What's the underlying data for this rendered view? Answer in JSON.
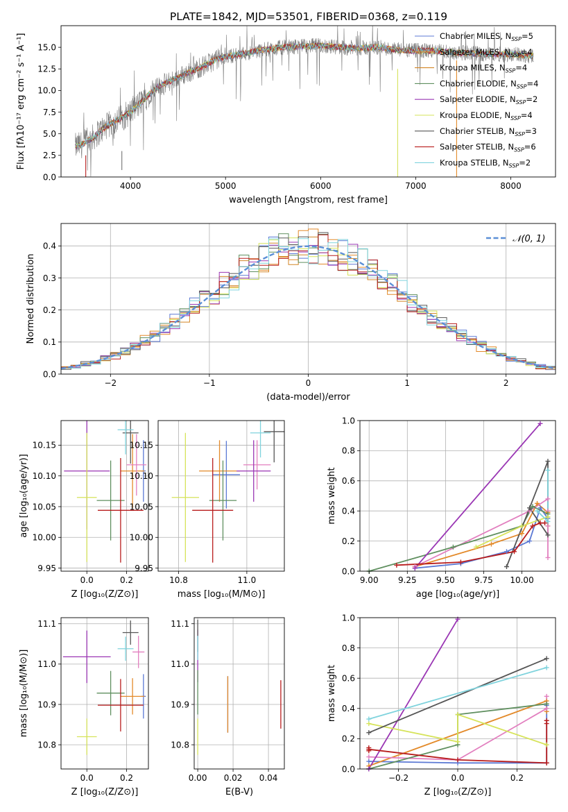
{
  "figure": {
    "title": "PLATE=1842, MJD=53501, FIBERID=0368, z=0.119"
  },
  "chart_data": [
    {
      "id": "spectrum",
      "type": "line",
      "xlabel": "wavelength [Angstrom, rest frame]",
      "ylabel": "Flux [fλ10⁻¹⁷ erg cm⁻² s⁻¹ A⁻¹]",
      "xlim": [
        3270,
        8470
      ],
      "ylim": [
        0,
        17.5
      ],
      "xticks": [
        4000,
        5000,
        6000,
        7000,
        8000
      ],
      "yticks": [
        0.0,
        2.5,
        5.0,
        7.5,
        10.0,
        12.5,
        15.0
      ],
      "ytick_labels": [
        "0.0",
        "2.5",
        "5.0",
        "7.5",
        "10.0",
        "12.5",
        "15.0"
      ],
      "grid": false,
      "legend_position": "top-right",
      "data_envelope": {
        "x": [
          3420,
          3500,
          3600,
          3700,
          3800,
          3900,
          4000,
          4100,
          4200,
          4300,
          4400,
          4500,
          4600,
          4700,
          4800,
          4900,
          5000,
          5200,
          5400,
          5600,
          5800,
          6000,
          6200,
          6400,
          6600,
          6800,
          7000,
          7200,
          7400,
          7600,
          7800,
          8000,
          8240
        ],
        "y": [
          3.5,
          3.8,
          4.5,
          5.5,
          6.2,
          6.8,
          7.5,
          8.5,
          9.6,
          10.5,
          11.0,
          11.5,
          12.0,
          12.5,
          13.0,
          13.6,
          13.9,
          14.3,
          14.7,
          15.0,
          15.1,
          15.2,
          15.0,
          14.9,
          15.0,
          14.7,
          14.6,
          14.6,
          14.4,
          14.3,
          14.2,
          14.2,
          14.0
        ]
      },
      "series": [
        {
          "name": "Chabrier MILES, N_SSP=5",
          "label_main": "Chabrier MILES, N",
          "label_sub": "SSP",
          "label_end": "=5",
          "color": "#5b79d4"
        },
        {
          "name": "Salpeter MILES, N_SSP=4",
          "label_main": "Salpeter MILES, N",
          "label_sub": "SSP",
          "label_end": "=4",
          "color": "#e38a2a"
        },
        {
          "name": "Kroupa MILES, N_SSP=4",
          "label_main": "Kroupa MILES, N",
          "label_sub": "SSP",
          "label_end": "=4",
          "color": "#d38525"
        },
        {
          "name": "Chabrier ELODIE, N_SSP=4",
          "label_main": "Chabrier ELODIE, N",
          "label_sub": "SSP",
          "label_end": "=4",
          "color": "#5f8f5f"
        },
        {
          "name": "Salpeter ELODIE, N_SSP=2",
          "label_main": "Salpeter ELODIE, N",
          "label_sub": "SSP",
          "label_end": "=2",
          "color": "#9a36b4"
        },
        {
          "name": "Kroupa ELODIE, N_SSP=4",
          "label_main": "Kroupa ELODIE, N",
          "label_sub": "SSP",
          "label_end": "=4",
          "color": "#d6e35a"
        },
        {
          "name": "Chabrier STELIB, N_SSP=3",
          "label_main": "Chabrier STELIB, N",
          "label_sub": "SSP",
          "label_end": "=3",
          "color": "#555555"
        },
        {
          "name": "Salpeter STELIB, N_SSP=6",
          "label_main": "Salpeter STELIB, N",
          "label_sub": "SSP",
          "label_end": "=6",
          "color": "#b81c1c"
        },
        {
          "name": "Kroupa STELIB, N_SSP=2",
          "label_main": "Kroupa STELIB, N",
          "label_sub": "SSP",
          "label_end": "=2",
          "color": "#7fd3dd"
        }
      ]
    },
    {
      "id": "residuals",
      "type": "line",
      "xlabel": "(data-model)/error",
      "ylabel": "Normed distribution",
      "xlim": [
        -2.5,
        2.5
      ],
      "ylim": [
        0,
        0.47
      ],
      "xticks": [
        -2,
        -1,
        0,
        1,
        2
      ],
      "xtick_labels": [
        "−2",
        "−1",
        "0",
        "1",
        "2"
      ],
      "yticks": [
        0.0,
        0.1,
        0.2,
        0.3,
        0.4
      ],
      "ytick_labels": [
        "0.0",
        "0.1",
        "0.2",
        "0.3",
        "0.4"
      ],
      "grid": true,
      "legend_position": "top-right",
      "legend": "𝒩(0, 1)",
      "gaussian_color": "#5b8fd6",
      "bin_width": 0.1
    },
    {
      "id": "age_vs_Z",
      "type": "scatter",
      "xlabel": "Z [log₁₀(Z/Z⊙)]",
      "ylabel": "age  [log₁₀(age/yr)]",
      "xlim": [
        -0.13,
        0.31
      ],
      "ylim": [
        9.945,
        10.19
      ],
      "xticks": [
        0.0,
        0.2
      ],
      "xtick_labels": [
        "0.0",
        "0.2"
      ],
      "yticks": [
        9.95,
        10.0,
        10.05,
        10.1,
        10.15
      ],
      "ytick_labels": [
        "9.95",
        "10.00",
        "10.05",
        "10.10",
        "10.15"
      ],
      "grid": true,
      "points": [
        {
          "x": 0.285,
          "y": 10.108,
          "xerr": 0.012,
          "yerr": 0.05,
          "color": "#5b79d4"
        },
        {
          "x": 0.23,
          "y": 10.108,
          "xerr": 0.06,
          "yerr": 0.06,
          "color": "#e38a2a"
        },
        {
          "x": 0.25,
          "y": 10.118,
          "xerr": 0.05,
          "yerr": 0.05,
          "color": "#e27fbf"
        },
        {
          "x": 0.12,
          "y": 10.06,
          "xerr": 0.07,
          "yerr": 0.065,
          "color": "#5f8f5f"
        },
        {
          "x": 0.0,
          "y": 10.108,
          "xerr": 0.115,
          "yerr": 0.095,
          "color": "#9a36b4"
        },
        {
          "x": 0.0,
          "y": 10.065,
          "xerr": 0.05,
          "yerr": 0.105,
          "color": "#d6e35a"
        },
        {
          "x": 0.22,
          "y": 10.17,
          "xerr": 0.04,
          "yerr": 0.05,
          "color": "#555555"
        },
        {
          "x": 0.17,
          "y": 10.044,
          "xerr": 0.115,
          "yerr": 0.085,
          "color": "#b81c1c"
        },
        {
          "x": 0.195,
          "y": 10.175,
          "xerr": 0.04,
          "yerr": 0.04,
          "color": "#7fd3dd"
        }
      ]
    },
    {
      "id": "age_vs_mass",
      "type": "scatter",
      "xlabel": "mass [log₁₀(M/M⊙)]",
      "xlim": [
        10.74,
        11.11
      ],
      "ylim": [
        9.945,
        10.19
      ],
      "xticks": [
        10.8,
        11.0
      ],
      "xtick_labels": [
        "10.8",
        "11.0"
      ],
      "yticks": [
        9.95,
        10.0,
        10.05,
        10.1,
        10.15
      ],
      "ytick_labels": [
        "9.95",
        "10.00",
        "10.05",
        "10.10",
        "10.15"
      ],
      "grid": true,
      "points": [
        {
          "x": 10.94,
          "y": 10.102,
          "xerr": 0.04,
          "yerr": 0.055,
          "color": "#5b79d4"
        },
        {
          "x": 10.92,
          "y": 10.108,
          "xerr": 0.06,
          "yerr": 0.05,
          "color": "#e38a2a"
        },
        {
          "x": 11.03,
          "y": 10.118,
          "xerr": 0.04,
          "yerr": 0.04,
          "color": "#e27fbf"
        },
        {
          "x": 10.93,
          "y": 10.06,
          "xerr": 0.04,
          "yerr": 0.065,
          "color": "#5f8f5f"
        },
        {
          "x": 11.02,
          "y": 10.108,
          "xerr": 0.05,
          "yerr": 0.05,
          "color": "#9a36b4"
        },
        {
          "x": 10.82,
          "y": 10.065,
          "xerr": 0.04,
          "yerr": 0.105,
          "color": "#d6e35a"
        },
        {
          "x": 11.08,
          "y": 10.172,
          "xerr": 0.03,
          "yerr": 0.05,
          "color": "#555555"
        },
        {
          "x": 10.9,
          "y": 10.044,
          "xerr": 0.06,
          "yerr": 0.085,
          "color": "#b81c1c"
        },
        {
          "x": 11.04,
          "y": 10.17,
          "xerr": 0.03,
          "yerr": 0.04,
          "color": "#7fd3dd"
        }
      ]
    },
    {
      "id": "mass_weight_vs_age",
      "type": "line",
      "xlabel": "age  [log₁₀(age/yr)]",
      "ylabel": "mass weight",
      "xlim": [
        8.94,
        10.22
      ],
      "ylim": [
        0,
        1.0
      ],
      "xticks": [
        9.0,
        9.25,
        9.5,
        9.75,
        10.0
      ],
      "xtick_labels": [
        "9.00",
        "9.25",
        "9.50",
        "9.75",
        "10.00"
      ],
      "yticks": [
        0.0,
        0.2,
        0.4,
        0.6,
        0.8,
        1.0
      ],
      "ytick_labels": [
        "0.0",
        "0.2",
        "0.4",
        "0.6",
        "0.8",
        "1.0"
      ],
      "grid": true,
      "series": [
        {
          "color": "#5b79d4",
          "x": [
            9.3,
            9.6,
            9.9,
            10.05,
            10.12,
            10.17
          ],
          "y": [
            0.02,
            0.05,
            0.13,
            0.2,
            0.42,
            0.35
          ]
        },
        {
          "color": "#e38a2a",
          "x": [
            9.3,
            9.8,
            10.0,
            10.1,
            10.17
          ],
          "y": [
            0.03,
            0.18,
            0.25,
            0.45,
            0.39
          ]
        },
        {
          "color": "#e27fbf",
          "x": [
            9.3,
            10.05,
            10.17,
            10.17
          ],
          "y": [
            0.03,
            0.4,
            0.48,
            0.4
          ]
        },
        {
          "color": "#5f8f5f",
          "x": [
            9.0,
            9.55,
            10.0,
            10.07,
            10.17
          ],
          "y": [
            0.0,
            0.16,
            0.3,
            0.43,
            0.38
          ]
        },
        {
          "color": "#9a36b4",
          "x": [
            9.3,
            10.12
          ],
          "y": [
            0.02,
            0.98
          ]
        },
        {
          "color": "#d6e35a",
          "x": [
            9.7,
            10.0,
            10.17,
            10.17
          ],
          "y": [
            0.16,
            0.3,
            0.36,
            0.3
          ]
        },
        {
          "color": "#555555",
          "x": [
            9.9,
            10.17,
            10.17,
            10.05
          ],
          "y": [
            0.03,
            0.73,
            0.24,
            0.42
          ]
        },
        {
          "color": "#b81c1c",
          "x": [
            9.18,
            9.6,
            9.95,
            10.07,
            10.12,
            10.15
          ],
          "y": [
            0.04,
            0.06,
            0.13,
            0.3,
            0.32,
            0.32
          ]
        },
        {
          "color": "#7fd3dd",
          "x": [
            10.17,
            10.17,
            10.1
          ],
          "y": [
            0.67,
            0.33,
            0.4
          ]
        },
        {
          "color": "#e27fbf",
          "x": [
            10.17,
            10.17
          ],
          "y": [
            0.09,
            0.3
          ]
        }
      ]
    },
    {
      "id": "mass_vs_Z",
      "type": "scatter",
      "xlabel": "Z [log₁₀(Z/Z⊙)]",
      "ylabel": "mass [log₁₀(M/M⊙)]",
      "xlim": [
        -0.13,
        0.31
      ],
      "ylim": [
        10.74,
        11.115
      ],
      "xticks": [
        0.0,
        0.2
      ],
      "xtick_labels": [
        "0.0",
        "0.2"
      ],
      "yticks": [
        10.8,
        10.9,
        11.0,
        11.1
      ],
      "ytick_labels": [
        "10.8",
        "10.9",
        "11.0",
        "11.1"
      ],
      "grid": true,
      "points": [
        {
          "x": 0.285,
          "y": 10.92,
          "xerr": 0.012,
          "yerr": 0.055,
          "color": "#5b79d4"
        },
        {
          "x": 0.23,
          "y": 10.92,
          "xerr": 0.06,
          "yerr": 0.045,
          "color": "#e38a2a"
        },
        {
          "x": 0.26,
          "y": 11.03,
          "xerr": 0.03,
          "yerr": 0.04,
          "color": "#e27fbf"
        },
        {
          "x": 0.12,
          "y": 10.928,
          "xerr": 0.07,
          "yerr": 0.055,
          "color": "#5f8f5f"
        },
        {
          "x": 0.0,
          "y": 11.018,
          "xerr": 0.12,
          "yerr": 0.065,
          "color": "#9a36b4"
        },
        {
          "x": 0.0,
          "y": 10.82,
          "xerr": 0.05,
          "yerr": 0.045,
          "color": "#d6e35a"
        },
        {
          "x": 0.22,
          "y": 11.078,
          "xerr": 0.04,
          "yerr": 0.03,
          "color": "#555555"
        },
        {
          "x": 0.17,
          "y": 10.898,
          "xerr": 0.115,
          "yerr": 0.065,
          "color": "#b81c1c"
        },
        {
          "x": 0.195,
          "y": 11.038,
          "xerr": 0.04,
          "yerr": 0.03,
          "color": "#7fd3dd"
        }
      ]
    },
    {
      "id": "mass_vs_EBV",
      "type": "scatter",
      "xlabel": "E(B-V)",
      "xlim": [
        -0.002,
        0.049
      ],
      "ylim": [
        10.74,
        11.115
      ],
      "xticks": [
        0.0,
        0.02,
        0.04
      ],
      "xtick_labels": [
        "0.00",
        "0.02",
        "0.04"
      ],
      "yticks": [
        10.8,
        10.9,
        11.0,
        11.1
      ],
      "ytick_labels": [
        "10.8",
        "10.9",
        "11.0",
        "11.1"
      ],
      "grid": true,
      "points": [
        {
          "x": 0.0,
          "y": 11.02,
          "xerr": 0,
          "yerr": 0.065,
          "color": "#9a36b4"
        },
        {
          "x": 0.0,
          "y": 11.07,
          "xerr": 0,
          "yerr": 0.04,
          "color": "#555555"
        },
        {
          "x": 0.0,
          "y": 11.04,
          "xerr": 0,
          "yerr": 0.03,
          "color": "#7fd3dd"
        },
        {
          "x": 0.0,
          "y": 10.82,
          "xerr": 0,
          "yerr": 0.045,
          "color": "#d6e35a"
        },
        {
          "x": 0.0,
          "y": 10.93,
          "xerr": 0,
          "yerr": 0.055,
          "color": "#5f8f5f"
        },
        {
          "x": 0.017,
          "y": 10.9,
          "xerr": 0,
          "yerr": 0.07,
          "color": "#5b79d4"
        },
        {
          "x": 0.017,
          "y": 10.9,
          "xerr": 0,
          "yerr": 0.07,
          "color": "#e38a2a"
        },
        {
          "x": 0.047,
          "y": 10.9,
          "xerr": 0,
          "yerr": 0.06,
          "color": "#b81c1c"
        }
      ]
    },
    {
      "id": "mass_weight_vs_Z",
      "type": "line",
      "xlabel": "Z [log₁₀(Z/Z⊙)]",
      "ylabel": "mass weight",
      "xlim": [
        -0.33,
        0.33
      ],
      "ylim": [
        0,
        1.0
      ],
      "xticks": [
        -0.2,
        0.0,
        0.2
      ],
      "xtick_labels": [
        "−0.2",
        "0.0",
        "0.2"
      ],
      "yticks": [
        0.0,
        0.2,
        0.4,
        0.6,
        0.8,
        1.0
      ],
      "ytick_labels": [
        "0.0",
        "0.2",
        "0.4",
        "0.6",
        "0.8",
        "1.0"
      ],
      "grid": true,
      "series": [
        {
          "color": "#5b79d4",
          "x": [
            -0.3,
            0.0,
            0.3,
            0.3
          ],
          "y": [
            0.05,
            0.04,
            0.04,
            0.42
          ]
        },
        {
          "color": "#e38a2a",
          "x": [
            -0.3,
            0.3,
            0.3
          ],
          "y": [
            0.02,
            0.45,
            0.38
          ]
        },
        {
          "color": "#e27fbf",
          "x": [
            -0.3,
            0.0,
            0.3,
            0.3
          ],
          "y": [
            0.08,
            0.06,
            0.4,
            0.48
          ]
        },
        {
          "color": "#5f8f5f",
          "x": [
            -0.3,
            0.0,
            0.0,
            0.3
          ],
          "y": [
            0.0,
            0.16,
            0.36,
            0.43
          ]
        },
        {
          "color": "#9a36b4",
          "x": [
            -0.3,
            0.0
          ],
          "y": [
            0.0,
            0.99
          ]
        },
        {
          "color": "#d6e35a",
          "x": [
            -0.3,
            0.0,
            0.0,
            0.3
          ],
          "y": [
            0.3,
            0.18,
            0.36,
            0.16
          ]
        },
        {
          "color": "#555555",
          "x": [
            -0.3,
            0.3
          ],
          "y": [
            0.24,
            0.73
          ]
        },
        {
          "color": "#b81c1c",
          "x": [
            -0.3,
            0.0,
            0.3,
            0.3,
            0.3,
            0.3
          ],
          "y": [
            0.13,
            0.06,
            0.04,
            0.3,
            0.32,
            0.04
          ]
        },
        {
          "color": "#7fd3dd",
          "x": [
            -0.3,
            0.3
          ],
          "y": [
            0.33,
            0.67
          ]
        },
        {
          "color": "#b81c1c",
          "x": [
            -0.3,
            -0.3
          ],
          "y": [
            0.12,
            0.14
          ]
        }
      ]
    }
  ]
}
